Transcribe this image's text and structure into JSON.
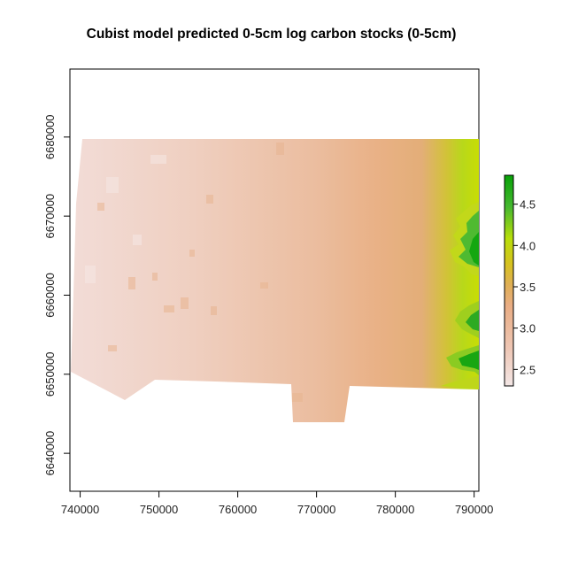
{
  "title": "Cubist model predicted 0-5cm log carbon stocks (0-5cm)",
  "map": {
    "x_ticks": [
      "740000",
      "750000",
      "760000",
      "770000",
      "780000",
      "790000"
    ],
    "y_ticks": [
      "6640000",
      "6650000",
      "6660000",
      "6670000",
      "6680000"
    ],
    "x_tick_values": [
      740000,
      750000,
      760000,
      770000,
      780000,
      790000
    ],
    "y_tick_values": [
      6640000,
      6650000,
      6660000,
      6670000,
      6680000
    ],
    "xlim": [
      738700,
      790600
    ],
    "ylim": [
      6635200,
      6688600
    ]
  },
  "legend": {
    "labels": [
      "2.5",
      "3.0",
      "3.5",
      "4.0",
      "4.5"
    ],
    "values": [
      2.5,
      3.0,
      3.5,
      4.0,
      4.5
    ],
    "range": [
      2.3,
      4.85
    ],
    "colors": [
      "#f2e2e0",
      "#eec6b4",
      "#e9ad84",
      "#dcc21a",
      "#b8de0a",
      "#3db63d",
      "#0aa50a"
    ]
  }
}
